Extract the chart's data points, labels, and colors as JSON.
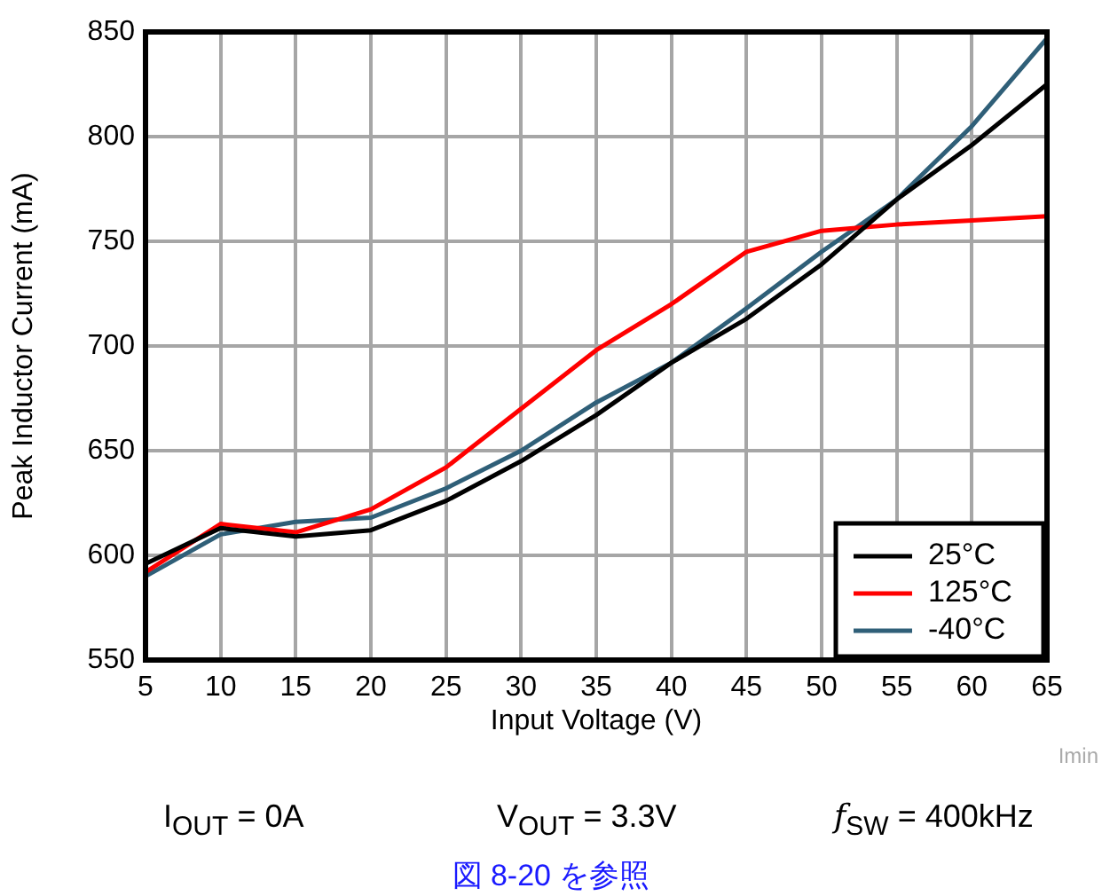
{
  "chart_data": {
    "type": "line",
    "xlabel": "Input Voltage (V)",
    "ylabel": "Peak Inductor Current (mA)",
    "x": [
      5,
      10,
      15,
      20,
      25,
      30,
      35,
      40,
      45,
      50,
      55,
      60,
      65
    ],
    "series": [
      {
        "name": "25°C",
        "color": "#000000",
        "values": [
          596,
          613,
          609,
          612,
          626,
          645,
          667,
          692,
          713,
          739,
          770,
          796,
          825
        ]
      },
      {
        "name": "125°C",
        "color": "#ff0000",
        "values": [
          592,
          615,
          611,
          622,
          642,
          670,
          698,
          720,
          745,
          755,
          758,
          760,
          762
        ]
      },
      {
        "name": "-40°C",
        "color": "#2f5f78",
        "values": [
          590,
          610,
          616,
          618,
          632,
          650,
          673,
          692,
          718,
          745,
          770,
          805,
          847
        ]
      }
    ],
    "xlim": [
      5,
      65
    ],
    "xticks": [
      5,
      10,
      15,
      20,
      25,
      30,
      35,
      40,
      45,
      50,
      55,
      60,
      65
    ],
    "ylim": [
      550,
      850
    ],
    "yticks": [
      550,
      600,
      650,
      700,
      750,
      800,
      850
    ],
    "grid": true,
    "legend": "bottom right",
    "marker": "none",
    "line_style": "solid",
    "annotations": [
      "Imin",
      "I$_{OUT}$ = 0A",
      "V$_{OUT}$ = 3.3V",
      "f$_{SW}$ = 400kHz",
      "図 8-20 を参照"
    ]
  }
}
